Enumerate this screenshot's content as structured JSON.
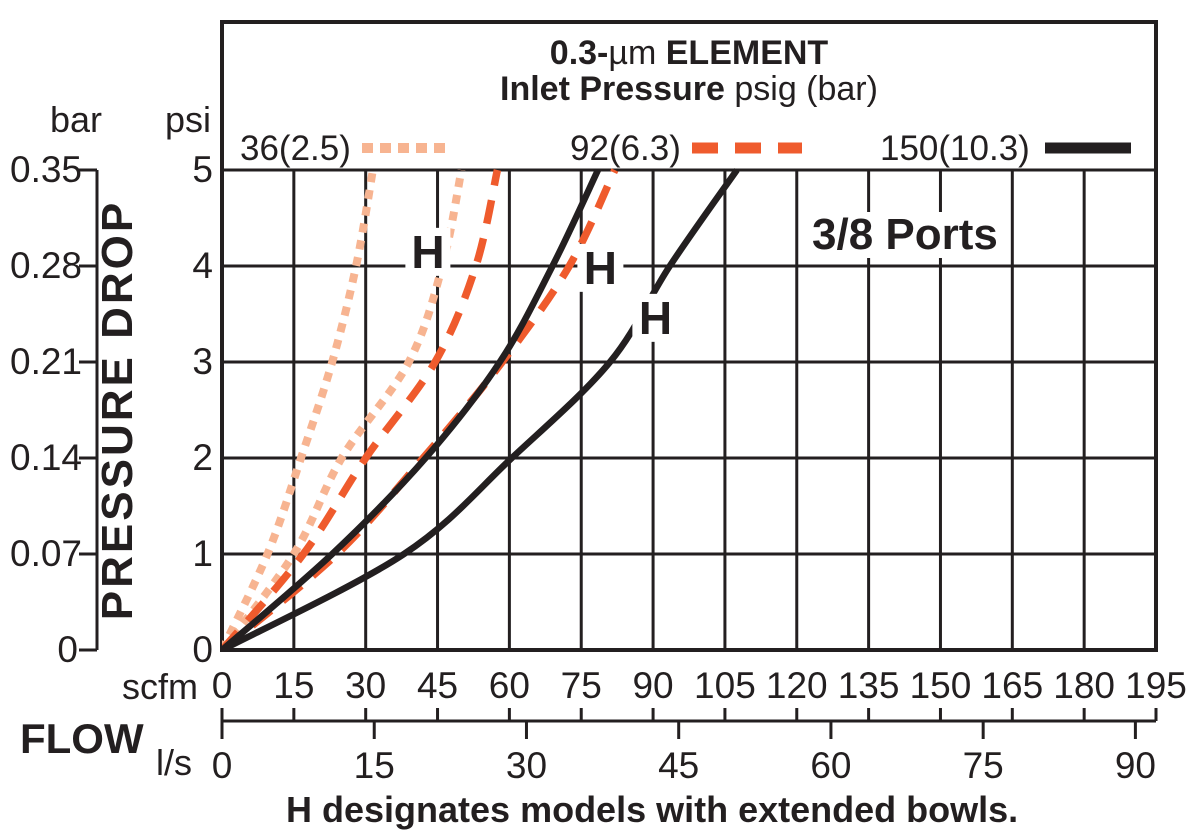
{
  "title": {
    "l1_bold": "0.3-",
    "l1_unit": "µm",
    "l1_rest": " ELEMENT",
    "l2_bold": "Inlet Pressure",
    "l2_rest": " psig (bar)"
  },
  "legend": {
    "items": [
      {
        "label": "36(2.5)",
        "style": "dotted",
        "color": "#F7B491"
      },
      {
        "label": "92(6.3)",
        "style": "dashed",
        "color": "#EF5B2D"
      },
      {
        "label": "150(10.3)",
        "style": "solid",
        "color": "#231F20"
      }
    ]
  },
  "axes": {
    "pressure": {
      "left_unit": "bar",
      "right_unit": "psi",
      "bar_ticks": [
        "0.35",
        "0.28",
        "0.21",
        "0.14",
        "0.07",
        "0"
      ],
      "psi_ticks": [
        "5",
        "4",
        "3",
        "2",
        "1",
        "0"
      ],
      "axis_label": "PRESSURE DROP"
    },
    "flow": {
      "label": "FLOW",
      "scfm_unit": "scfm",
      "scfm_ticks": [
        0,
        15,
        30,
        45,
        60,
        75,
        90,
        105,
        120,
        135,
        150,
        165,
        180,
        195
      ],
      "ls_unit": "l/s",
      "ls_ticks": [
        0,
        15,
        30,
        45,
        60,
        75,
        90
      ]
    }
  },
  "annotations": {
    "ports": "3/8 Ports",
    "h_letter": "H",
    "h_marks": [
      {
        "scfm": 43.0,
        "psi": 4.15
      },
      {
        "scfm": 79.0,
        "psi": 3.98
      },
      {
        "scfm": 90.5,
        "psi": 3.46
      }
    ],
    "caption": "H designates models with extended bowls."
  },
  "chart_data": {
    "type": "line",
    "title": "0.3-µm ELEMENT",
    "subtitle": "Inlet Pressure psig (bar)",
    "xlabel": "FLOW",
    "ylabel": "PRESSURE DROP",
    "x_units": [
      "scfm",
      "l/s"
    ],
    "y_units": [
      "psi",
      "bar"
    ],
    "xlim_scfm": [
      0,
      195
    ],
    "ylim_psi": [
      0,
      5
    ],
    "x_ticks_scfm": [
      0,
      15,
      30,
      45,
      60,
      75,
      90,
      105,
      120,
      135,
      150,
      165,
      180,
      195
    ],
    "x_ticks_ls": [
      0,
      15,
      30,
      45,
      60,
      75,
      90
    ],
    "y_ticks_psi": [
      0,
      1,
      2,
      3,
      4,
      5
    ],
    "y_ticks_bar": [
      0,
      0.07,
      0.14,
      0.21,
      0.28,
      0.35
    ],
    "ls_to_scfm": 2.11888,
    "grid": true,
    "legend_position": "top",
    "note": "3/8 Ports; H designates models with extended bowls.",
    "psi_points": [
      0,
      1,
      2,
      3,
      4,
      5
    ],
    "series": [
      {
        "key": "36_std",
        "name": "36(2.5) standard",
        "inlet_psig": 36,
        "inlet_bar": 2.5,
        "line": "dotted",
        "color": "#F7B491",
        "points_scfm": [
          0,
          9.5,
          16.5,
          23,
          28,
          31.5
        ]
      },
      {
        "key": "36_h",
        "name": "36(2.5) H model",
        "inlet_psig": 36,
        "inlet_bar": 2.5,
        "line": "dotted",
        "color": "#F7B491",
        "points_scfm": [
          0,
          15,
          25,
          39,
          46,
          50
        ]
      },
      {
        "key": "92_std",
        "name": "92(6.3) standard",
        "inlet_psig": 92,
        "inlet_bar": 6.3,
        "line": "dashed",
        "color": "#EF5B2D",
        "points_scfm": [
          0,
          17,
          30,
          44.5,
          53,
          57.5
        ]
      },
      {
        "key": "92_h",
        "name": "92(6.3) H model",
        "inlet_psig": 92,
        "inlet_bar": 6.3,
        "line": "dashed",
        "color": "#EF5B2D",
        "points_scfm": [
          0,
          24,
          42,
          58.5,
          72.5,
          82
        ]
      },
      {
        "key": "150_std",
        "name": "150(10.3) standard",
        "inlet_psig": 150,
        "inlet_bar": 10.3,
        "line": "solid",
        "color": "#231F20",
        "points_scfm": [
          0,
          23,
          42.5,
          58,
          69,
          78.5
        ]
      },
      {
        "key": "150_h",
        "name": "150(10.3) H model",
        "inlet_psig": 150,
        "inlet_bar": 10.3,
        "line": "solid",
        "color": "#231F20",
        "points_scfm": [
          0,
          38,
          60.5,
          81,
          93.5,
          107.5
        ]
      }
    ]
  }
}
